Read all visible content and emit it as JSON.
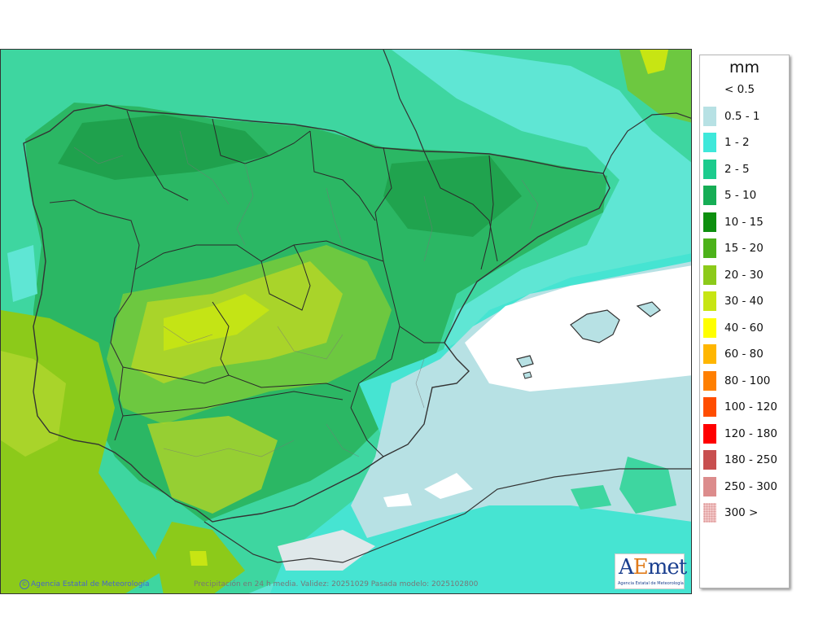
{
  "legend": {
    "unit": "mm",
    "items": [
      {
        "label": "< 0.5",
        "color": "#ffffff"
      },
      {
        "label": "0.5 - 1",
        "color": "#b7e1e4"
      },
      {
        "label": "1 - 2",
        "color": "#3ee8da"
      },
      {
        "label": "2 - 5",
        "color": "#1ccb8d"
      },
      {
        "label": "5 - 10",
        "color": "#16ad55"
      },
      {
        "label": "10 - 15",
        "color": "#0d8f0e"
      },
      {
        "label": "15 - 20",
        "color": "#4cb21a"
      },
      {
        "label": "20 - 30",
        "color": "#8cca1a"
      },
      {
        "label": "30 - 40",
        "color": "#c7e513"
      },
      {
        "label": "40 - 60",
        "color": "#ffff00"
      },
      {
        "label": "60 - 80",
        "color": "#ffb600"
      },
      {
        "label": "80 - 100",
        "color": "#ff7f00"
      },
      {
        "label": "100 - 120",
        "color": "#ff4d00"
      },
      {
        "label": "120 - 180",
        "color": "#ff0000"
      },
      {
        "label": "180 - 250",
        "color": "#c84f4f"
      },
      {
        "label": "250 - 300",
        "color": "#dc8c8c"
      },
      {
        "label": "300 >",
        "color": "#f2c8c8"
      }
    ]
  },
  "footer": {
    "credit": "Agencia Estatal de Meteorología",
    "info": "Precipitación en 24 h media. Validez: 20251029 Pasada modelo: 2025102800"
  },
  "logo": {
    "name_prefix": "A",
    "name_e": "E",
    "name_suffix": "met",
    "subtitle": "Agencia Estatal de Meteorología"
  }
}
